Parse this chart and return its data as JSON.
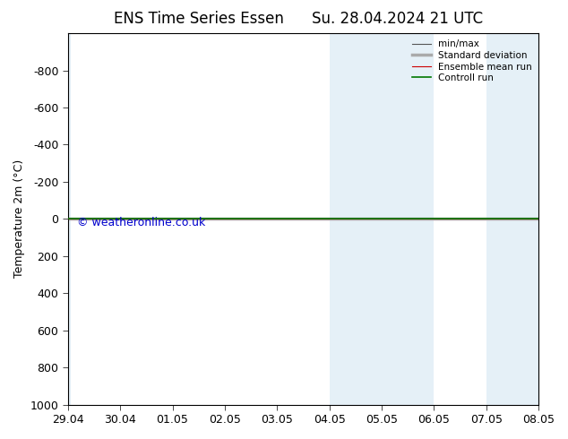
{
  "title_left": "ENS Time Series Essen",
  "title_right": "Su. 28.04.2024 21 UTC",
  "ylabel": "Temperature 2m (°C)",
  "watermark": "© weatheronline.co.uk",
  "xlim_dates": [
    "29.04",
    "30.04",
    "01.05",
    "02.05",
    "03.05",
    "04.05",
    "05.05",
    "06.05",
    "07.05",
    "08.05"
  ],
  "xlim": [
    0,
    9
  ],
  "ylim": [
    -1000,
    1000
  ],
  "yticks": [
    -800,
    -600,
    -400,
    -200,
    0,
    200,
    400,
    600,
    800,
    1000
  ],
  "shaded_color": "#daeaf5",
  "shaded_alpha": 0.7,
  "line_color_control": "#007700",
  "line_color_ensemble": "#cc0000",
  "background_color": "#ffffff",
  "plot_bg_color": "#ffffff",
  "border_color": "#000000",
  "title_fontsize": 12,
  "axis_fontsize": 9,
  "watermark_color": "#0000cc",
  "watermark_fontsize": 9,
  "legend_labels": [
    "min/max",
    "Standard deviation",
    "Ensemble mean run",
    "Controll run"
  ],
  "legend_line_colors": [
    "#888888",
    "#aaaaaa",
    "#cc0000",
    "#007700"
  ]
}
